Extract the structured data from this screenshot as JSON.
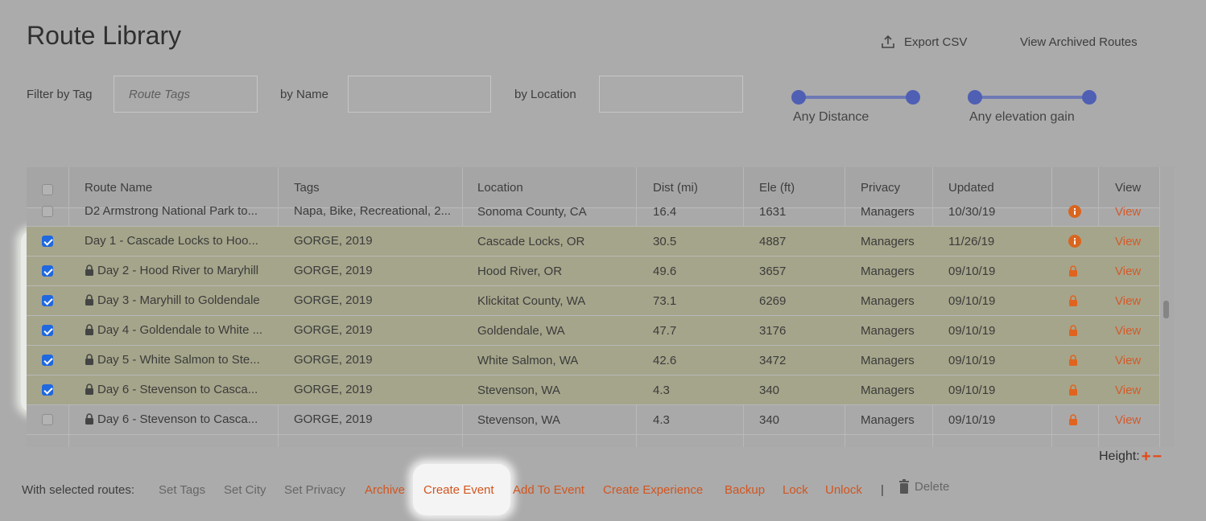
{
  "header": {
    "title": "Route Library",
    "export_label": "Export CSV",
    "export_icon": "upload-icon",
    "archived_label": "View Archived Routes"
  },
  "filters": {
    "tag_label": "Filter by Tag",
    "tag_placeholder": "Route Tags",
    "tag_value": "",
    "name_label": "by Name",
    "name_value": "",
    "location_label": "by Location",
    "location_value": "",
    "distance_label": "Any Distance",
    "distance_range": [
      0,
      1
    ],
    "elevation_label": "Any elevation gain",
    "elevation_range": [
      0,
      1
    ],
    "accent": "#4f5fb4"
  },
  "table": {
    "columns": [
      "Route Name",
      "Tags",
      "Location",
      "Dist (mi)",
      "Ele (ft)",
      "Privacy",
      "Updated",
      "",
      "View"
    ],
    "rows": [
      {
        "selected": false,
        "locked": false,
        "name": "D2 Armstrong National Park to...",
        "tags": "Napa, Bike, Recreational, 2...",
        "location": "Sonoma County, CA",
        "dist": "16.4",
        "ele": "1631",
        "privacy": "Managers",
        "updated": "10/30/19",
        "status_icon": "info-icon",
        "view": "View"
      },
      {
        "selected": true,
        "locked": false,
        "name": "Day 1 - Cascade Locks to Hoo...",
        "tags": "GORGE, 2019",
        "location": "Cascade Locks, OR",
        "dist": "30.5",
        "ele": "4887",
        "privacy": "Managers",
        "updated": "11/26/19",
        "status_icon": "info-icon",
        "view": "View"
      },
      {
        "selected": true,
        "locked": true,
        "name": "Day 2 - Hood River to Maryhill",
        "tags": "GORGE, 2019",
        "location": "Hood River, OR",
        "dist": "49.6",
        "ele": "3657",
        "privacy": "Managers",
        "updated": "09/10/19",
        "status_icon": "lock-icon",
        "view": "View"
      },
      {
        "selected": true,
        "locked": true,
        "name": "Day 3 - Maryhill to Goldendale",
        "tags": "GORGE, 2019",
        "location": "Klickitat County, WA",
        "dist": "73.1",
        "ele": "6269",
        "privacy": "Managers",
        "updated": "09/10/19",
        "status_icon": "lock-icon",
        "view": "View"
      },
      {
        "selected": true,
        "locked": true,
        "name": "Day 4 - Goldendale to White ...",
        "tags": "GORGE, 2019",
        "location": "Goldendale, WA",
        "dist": "47.7",
        "ele": "3176",
        "privacy": "Managers",
        "updated": "09/10/19",
        "status_icon": "lock-icon",
        "view": "View"
      },
      {
        "selected": true,
        "locked": true,
        "name": "Day 5 - White Salmon to Ste...",
        "tags": "GORGE, 2019",
        "location": "White Salmon, WA",
        "dist": "42.6",
        "ele": "3472",
        "privacy": "Managers",
        "updated": "09/10/19",
        "status_icon": "lock-icon",
        "view": "View"
      },
      {
        "selected": true,
        "locked": true,
        "name": "Day 6 - Stevenson to Casca...",
        "tags": "GORGE, 2019",
        "location": "Stevenson, WA",
        "dist": "4.3",
        "ele": "340",
        "privacy": "Managers",
        "updated": "09/10/19",
        "status_icon": "lock-icon",
        "view": "View"
      },
      {
        "selected": false,
        "locked": true,
        "name": "Day 6 - Stevenson to Casca...",
        "tags": "GORGE, 2019",
        "location": "Stevenson, WA",
        "dist": "4.3",
        "ele": "340",
        "privacy": "Managers",
        "updated": "09/10/19",
        "status_icon": "lock-icon",
        "view": "View"
      }
    ],
    "selected_row_color": "#a5a58b",
    "link_color": "#d45a2a"
  },
  "height_control": {
    "label": "Height:",
    "plus": "+",
    "minus": "−"
  },
  "actions": {
    "label": "With selected routes:",
    "items": [
      {
        "label": "Set Tags",
        "style": "grey"
      },
      {
        "label": "Set City",
        "style": "grey"
      },
      {
        "label": "Set Privacy",
        "style": "grey"
      },
      {
        "label": "Archive",
        "style": "orange"
      },
      {
        "label": "Create Event",
        "style": "orange"
      },
      {
        "label": "Add To Event",
        "style": "orange"
      },
      {
        "label": "Create Experience",
        "style": "orange"
      },
      {
        "label": "Backup",
        "style": "orange"
      },
      {
        "label": "Lock",
        "style": "orange"
      },
      {
        "label": "Unlock",
        "style": "orange"
      }
    ],
    "separator": "|",
    "delete_label": "Delete"
  }
}
